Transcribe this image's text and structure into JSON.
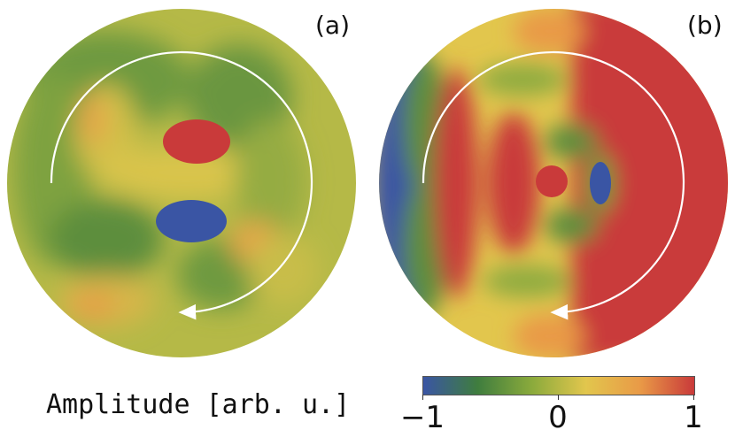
{
  "panels": {
    "a": {
      "label": "(a)"
    },
    "b": {
      "label": "(b)"
    }
  },
  "colorbar": {
    "title": "Amplitude [arb. u.]",
    "ticks": [
      "−1",
      "0",
      "1"
    ],
    "range": [
      -1,
      1
    ],
    "stops": [
      "#3a55a4",
      "#3f7d3e",
      "#8aaa3c",
      "#e2c64d",
      "#e99a47",
      "#c93a3a"
    ]
  },
  "colors": {
    "blue": "#3a55a4",
    "dark_green": "#3f7d3e",
    "green": "#6e9a3f",
    "yellow_green": "#b9bb48",
    "yellow": "#e2c64d",
    "orange": "#e99a47",
    "red": "#c93a3a",
    "arrow": "#ffffff"
  }
}
